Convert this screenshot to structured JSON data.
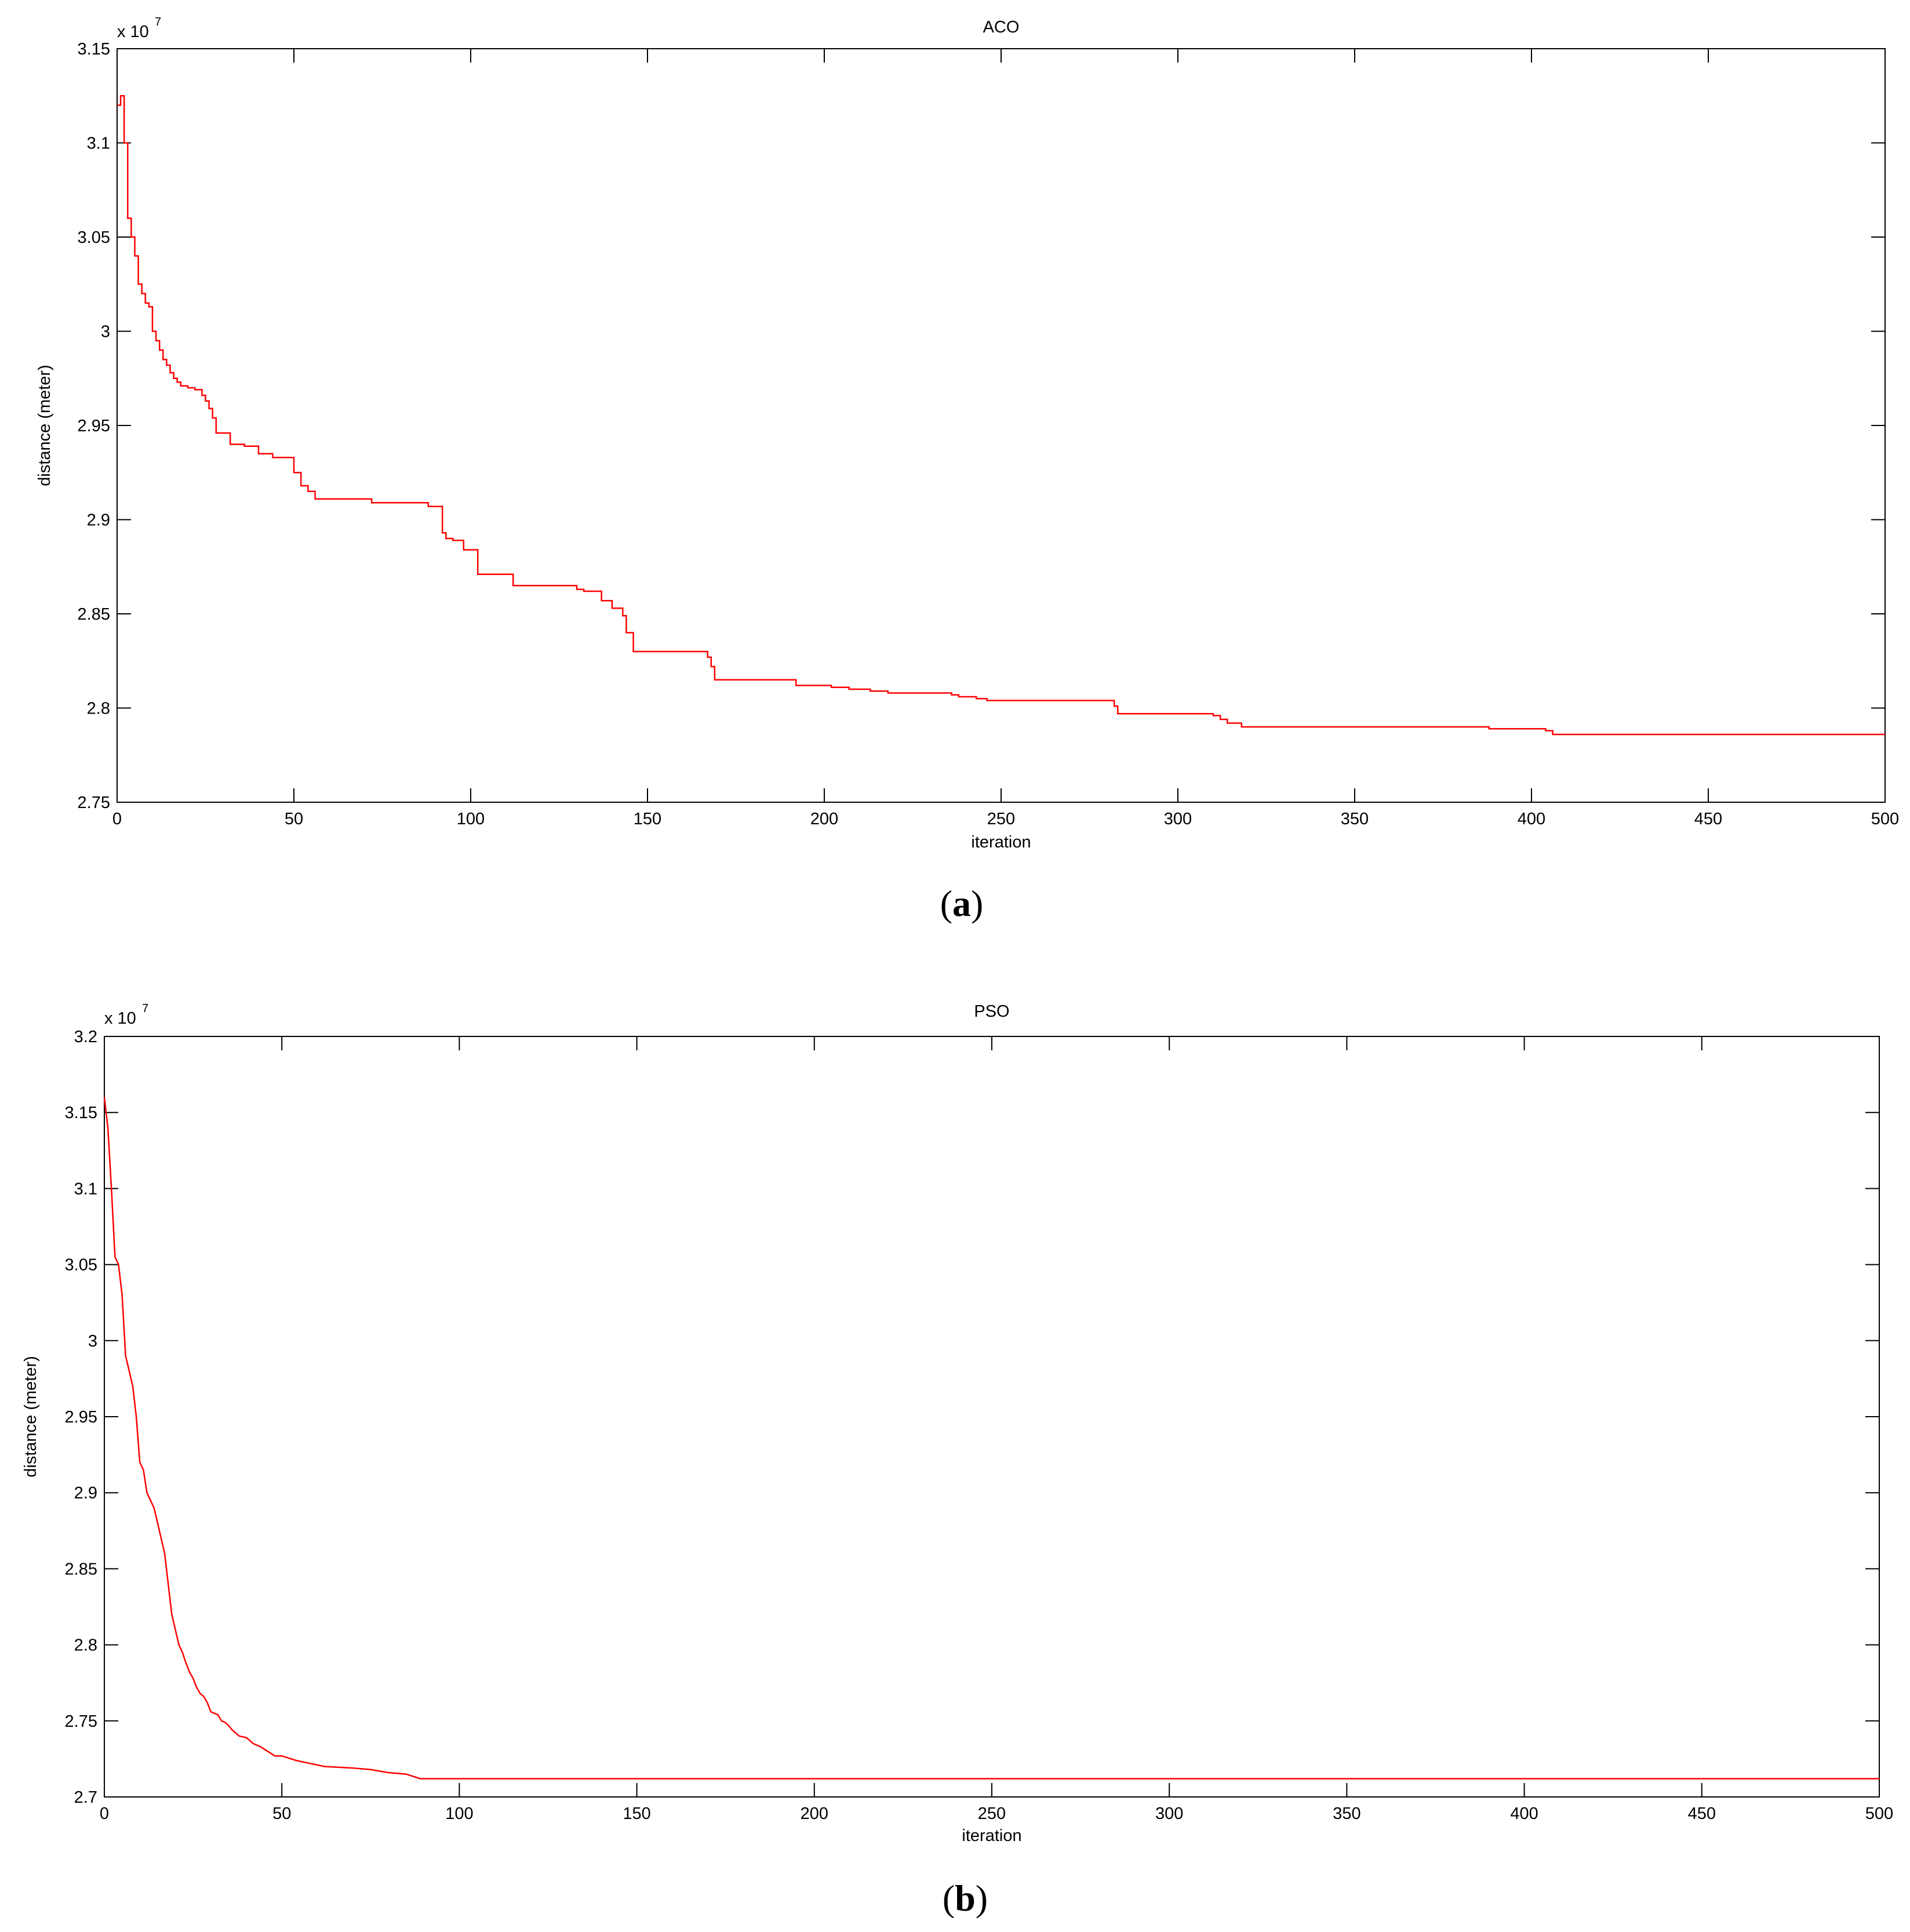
{
  "chart_data": [
    {
      "type": "line",
      "title": "ACO",
      "xlabel": "iteration",
      "ylabel": "distance (meter)",
      "panel_label": "a",
      "multiplier": {
        "base": "x 10",
        "exponent": "7"
      },
      "xlim": [
        0,
        500
      ],
      "ylim": [
        2.75,
        3.15
      ],
      "xticks": [
        0,
        50,
        100,
        150,
        200,
        250,
        300,
        350,
        400,
        450,
        500
      ],
      "xtick_labels": [
        "0",
        "50",
        "100",
        "150",
        "200",
        "250",
        "300",
        "350",
        "400",
        "450",
        "500"
      ],
      "yticks": [
        2.75,
        2.8,
        2.85,
        2.9,
        2.95,
        3.0,
        3.05,
        3.1,
        3.15
      ],
      "ytick_labels": [
        "2.75",
        "2.8",
        "2.85",
        "2.9",
        "2.95",
        "3",
        "3.05",
        "3.1",
        "3.15"
      ],
      "grid": false,
      "line_color": "#ff0000",
      "step": true,
      "series": [
        {
          "x": [
            0,
            1,
            2,
            3,
            4,
            5,
            6,
            7,
            8,
            9,
            10,
            11,
            12,
            13,
            14,
            15,
            16,
            17,
            18,
            20,
            22,
            24,
            25,
            26,
            27,
            28,
            32,
            36,
            40,
            44,
            50,
            52,
            54,
            56,
            70,
            72,
            88,
            92,
            93,
            95,
            98,
            102,
            112,
            130,
            132,
            137,
            140,
            143,
            144,
            146,
            167,
            168,
            169,
            192,
            202,
            207,
            213,
            218,
            236,
            238,
            243,
            246,
            282,
            283,
            310,
            312,
            314,
            318,
            384,
            388,
            404,
            406,
            500
          ],
          "y": [
            3.12,
            3.125,
            3.1,
            3.06,
            3.05,
            3.04,
            3.025,
            3.02,
            3.015,
            3.013,
            3.0,
            2.995,
            2.99,
            2.985,
            2.982,
            2.978,
            2.975,
            2.973,
            2.971,
            2.97,
            2.969,
            2.966,
            2.963,
            2.959,
            2.954,
            2.946,
            2.94,
            2.939,
            2.935,
            2.933,
            2.925,
            2.918,
            2.915,
            2.911,
            2.911,
            2.909,
            2.907,
            2.893,
            2.89,
            2.889,
            2.884,
            2.871,
            2.865,
            2.863,
            2.862,
            2.857,
            2.853,
            2.849,
            2.84,
            2.83,
            2.827,
            2.822,
            2.815,
            2.812,
            2.811,
            2.81,
            2.809,
            2.808,
            2.807,
            2.806,
            2.805,
            2.804,
            2.801,
            2.797,
            2.796,
            2.794,
            2.792,
            2.79,
            2.79,
            2.789,
            2.788,
            2.786,
            2.786
          ]
        }
      ]
    },
    {
      "type": "line",
      "title": "PSO",
      "xlabel": "iteration",
      "ylabel": "distance (meter)",
      "panel_label": "b",
      "multiplier": {
        "base": "x 10",
        "exponent": "7"
      },
      "xlim": [
        0,
        500
      ],
      "ylim": [
        2.7,
        3.2
      ],
      "xticks": [
        0,
        50,
        100,
        150,
        200,
        250,
        300,
        350,
        400,
        450,
        500
      ],
      "xtick_labels": [
        "0",
        "50",
        "100",
        "150",
        "200",
        "250",
        "300",
        "350",
        "400",
        "450",
        "500"
      ],
      "yticks": [
        2.7,
        2.75,
        2.8,
        2.85,
        2.9,
        2.95,
        3.0,
        3.05,
        3.1,
        3.15,
        3.2
      ],
      "ytick_labels": [
        "2.7",
        "2.75",
        "2.8",
        "2.85",
        "2.9",
        "2.95",
        "3",
        "3.05",
        "3.1",
        "3.15",
        "3.2"
      ],
      "grid": false,
      "line_color": "#ff0000",
      "step": false,
      "series": [
        {
          "x": [
            0,
            1,
            2,
            3,
            4,
            5,
            6,
            7,
            8,
            9,
            10,
            11,
            12,
            13,
            14,
            15,
            16,
            17,
            18,
            19,
            20,
            21,
            22,
            23,
            24,
            25,
            26,
            27,
            28,
            29,
            30,
            31,
            32,
            33,
            34,
            35,
            36,
            38,
            40,
            42,
            44,
            46,
            48,
            50,
            54,
            58,
            62,
            70,
            75,
            80,
            85,
            89,
            90,
            92,
            100,
            200,
            300,
            400,
            500
          ],
          "y": [
            3.16,
            3.14,
            3.1,
            3.055,
            3.05,
            3.03,
            2.99,
            2.98,
            2.97,
            2.95,
            2.92,
            2.915,
            2.9,
            2.895,
            2.89,
            2.88,
            2.87,
            2.86,
            2.84,
            2.82,
            2.81,
            2.8,
            2.795,
            2.788,
            2.782,
            2.778,
            2.772,
            2.768,
            2.766,
            2.762,
            2.756,
            2.755,
            2.754,
            2.75,
            2.749,
            2.747,
            2.744,
            2.74,
            2.739,
            2.735,
            2.733,
            2.73,
            2.727,
            2.727,
            2.724,
            2.722,
            2.72,
            2.719,
            2.718,
            2.716,
            2.715,
            2.712,
            2.712,
            2.712,
            2.712,
            2.712,
            2.712,
            2.712,
            2.712
          ]
        }
      ]
    }
  ]
}
